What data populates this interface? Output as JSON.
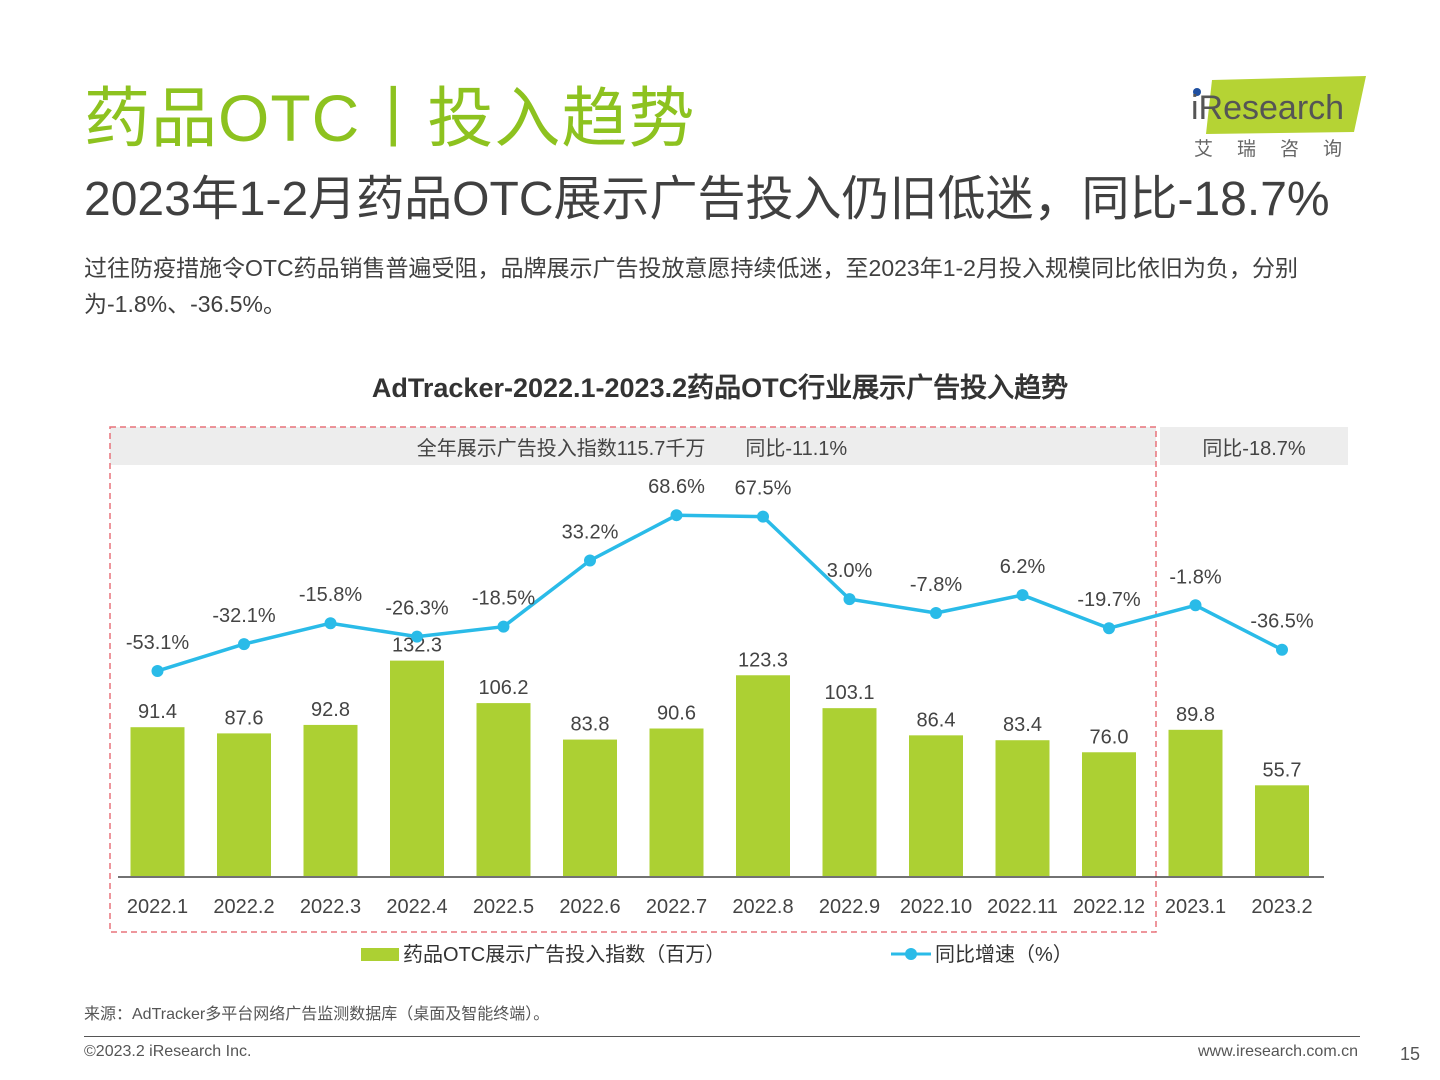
{
  "header": {
    "title": "药品OTC丨投入趋势",
    "subtitle": "2023年1-2月药品OTC展示广告投入仍旧低迷，同比-18.7%",
    "description": "过往防疫措施令OTC药品销售普遍受阻，品牌展示广告投放意愿持续低迷，至2023年1-2月投入规模同比依旧为负，分别为-1.8%、-36.5%。"
  },
  "logo": {
    "word": "iResearch",
    "cn": "艾瑞咨询"
  },
  "banners": {
    "left": "全年展示广告投入指数115.7千万　　同比-11.1%",
    "right": "同比-18.7%"
  },
  "chart_data": {
    "type": "bar",
    "title": "AdTracker-2022.1-2023.2药品OTC行业展示广告投入趋势",
    "categories": [
      "2022.1",
      "2022.2",
      "2022.3",
      "2022.4",
      "2022.5",
      "2022.6",
      "2022.7",
      "2022.8",
      "2022.9",
      "2022.10",
      "2022.11",
      "2022.12",
      "2023.1",
      "2023.2"
    ],
    "series": [
      {
        "name": "药品OTC展示广告投入指数（百万）",
        "type": "bar",
        "color": "#acd033",
        "values": [
          91.4,
          87.6,
          92.8,
          132.3,
          106.2,
          83.8,
          90.6,
          123.3,
          103.1,
          86.4,
          83.4,
          76.0,
          89.8,
          55.7
        ],
        "labels": [
          "91.4",
          "87.6",
          "92.8",
          "132.3",
          "106.2",
          "83.8",
          "90.6",
          "123.3",
          "103.1",
          "86.4",
          "83.4",
          "76.0",
          "89.8",
          "55.7"
        ]
      },
      {
        "name": "同比增速（%）",
        "type": "line",
        "color": "#2abbe8",
        "values": [
          -53.1,
          -32.1,
          -15.8,
          -26.3,
          -18.5,
          33.2,
          68.6,
          67.5,
          3.0,
          -7.8,
          6.2,
          -19.7,
          -1.8,
          -36.5
        ],
        "labels": [
          "-53.1%",
          "-32.1%",
          "-15.8%",
          "-26.3%",
          "-18.5%",
          "33.2%",
          "68.6%",
          "67.5%",
          "3.0%",
          "-7.8%",
          "6.2%",
          "-19.7%",
          "-1.8%",
          "-36.5%"
        ]
      }
    ],
    "legend": "bottom-center",
    "grid": false
  },
  "footer": {
    "source": "来源：AdTracker多平台网络广告监测数据库（桌面及智能终端）。",
    "copyright": "©2023.2 iResearch Inc.",
    "website": "www.iresearch.com.cn",
    "page": "15"
  }
}
